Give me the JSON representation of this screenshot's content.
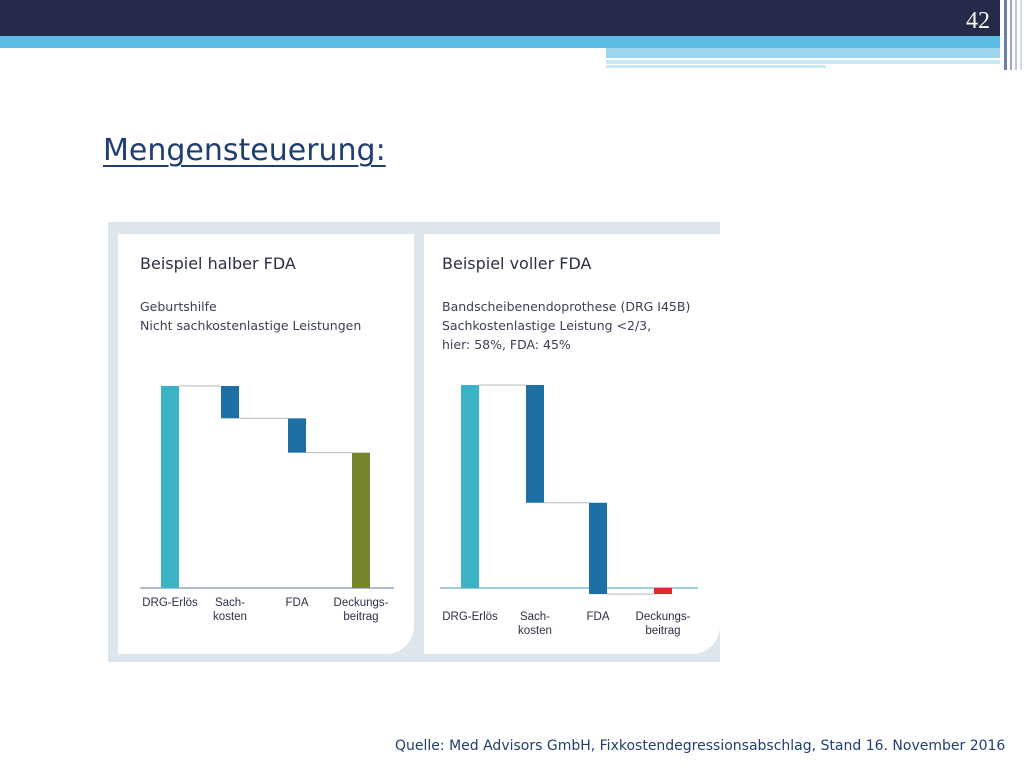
{
  "slide": {
    "number": "42",
    "title": "Mengensteuerung:",
    "footer": "Quelle: Med Advisors GmbH, Fixkostendegressionsabschlag, Stand 16. November 2016"
  },
  "colors": {
    "header_dark": "#252a48",
    "header_blue": "#5bbde6",
    "title": "#1f3f74",
    "revenue_bar": "#3bb3c6",
    "cost_bar": "#1e6fa3",
    "positive_margin_bar": "#77852c",
    "negative_margin_bar": "#e0282d",
    "panel_background": "#dde6ec"
  },
  "chart_data": [
    {
      "type": "waterfall",
      "title": "Beispiel halber FDA",
      "subtitle": [
        "Geburtshilfe",
        "Nicht sachkostenlastige Leistungen"
      ],
      "categories": [
        "DRG-Erlös",
        "Sach-\nkosten",
        "FDA",
        "Deckungs-\nbeitrag"
      ],
      "series": [
        {
          "values": [
            100,
            -16,
            -17,
            67
          ],
          "kinds": [
            "total",
            "decrease",
            "decrease",
            "total"
          ]
        }
      ],
      "ylim": [
        0,
        100
      ]
    },
    {
      "type": "waterfall",
      "title": "Beispiel voller FDA",
      "subtitle": [
        "Bandscheibenendoprothese (DRG I45B)",
        "Sachkostenlastige Leistung <2/3,",
        "hier: 58%, FDA: 45%"
      ],
      "categories": [
        "DRG-Erlös",
        "Sach-\nkosten",
        "FDA",
        "Deckungs-\nbeitrag"
      ],
      "series": [
        {
          "values": [
            100,
            -58,
            -45,
            -3
          ],
          "kinds": [
            "total",
            "decrease",
            "decrease",
            "total"
          ]
        }
      ],
      "ylim": [
        -3,
        100
      ]
    }
  ]
}
